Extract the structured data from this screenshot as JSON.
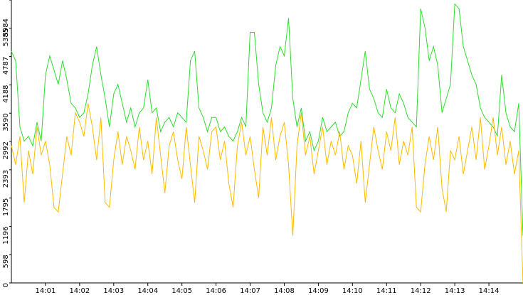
{
  "chart_data": {
    "type": "line",
    "x": [
      0,
      0.125,
      0.25,
      0.375,
      0.5,
      0.625,
      0.75,
      0.875,
      1,
      1.125,
      1.25,
      1.375,
      1.5,
      1.625,
      1.75,
      1.875,
      2,
      2.125,
      2.25,
      2.375,
      2.5,
      2.625,
      2.75,
      2.875,
      3,
      3.125,
      3.25,
      3.375,
      3.5,
      3.625,
      3.75,
      3.875,
      4,
      4.125,
      4.25,
      4.375,
      4.5,
      4.625,
      4.75,
      4.875,
      5,
      5.125,
      5.25,
      5.375,
      5.5,
      5.625,
      5.75,
      5.875,
      6,
      6.125,
      6.25,
      6.375,
      6.5,
      6.625,
      6.75,
      6.875,
      7,
      7.125,
      7.25,
      7.375,
      7.5,
      7.625,
      7.75,
      7.875,
      8,
      8.125,
      8.25,
      8.375,
      8.5,
      8.625,
      8.75,
      8.875,
      9,
      9.125,
      9.25,
      9.375,
      9.5,
      9.625,
      9.75,
      9.875,
      10,
      10.125,
      10.25,
      10.375,
      10.5,
      10.625,
      10.75,
      10.875,
      11,
      11.125,
      11.25,
      11.375,
      11.5,
      11.625,
      11.75,
      11.875,
      12,
      12.125,
      12.25,
      12.375,
      12.5,
      12.625,
      12.75,
      12.875,
      13,
      13.125,
      13.25,
      13.375,
      13.5,
      13.625,
      13.75,
      13.875,
      14,
      14.125,
      14.25,
      14.375,
      14.5,
      14.625,
      14.75,
      14.875,
      15
    ],
    "series": [
      {
        "color": "#2edc2e",
        "values": [
          4900,
          4700,
          3300,
          3000,
          3100,
          2900,
          3400,
          3000,
          4400,
          4800,
          4500,
          4200,
          4700,
          4300,
          3800,
          3700,
          3500,
          3600,
          4000,
          4600,
          5000,
          4400,
          3900,
          3300,
          4000,
          4200,
          3800,
          3400,
          3700,
          3300,
          3600,
          3700,
          4300,
          3600,
          3700,
          3200,
          3400,
          3500,
          3300,
          3600,
          3500,
          3400,
          4700,
          4900,
          3700,
          3500,
          3200,
          3500,
          3500,
          3200,
          3300,
          3100,
          3000,
          3200,
          3500,
          3300,
          5300,
          5300,
          4200,
          3600,
          3400,
          3700,
          4600,
          5000,
          4800,
          5600,
          3900,
          3300,
          3700,
          3000,
          3200,
          2800,
          3000,
          3500,
          3200,
          3300,
          3400,
          3100,
          3200,
          3600,
          3800,
          3700,
          4300,
          4900,
          4100,
          3900,
          3600,
          3500,
          4100,
          3700,
          3600,
          4000,
          3800,
          3500,
          3400,
          3300,
          5800,
          5400,
          4700,
          5000,
          4600,
          3600,
          3900,
          4200,
          5900,
          5800,
          5000,
          4700,
          4400,
          4200,
          3700,
          3500,
          3400,
          3300,
          3100,
          4400,
          3600,
          3300,
          3200,
          3800,
          1000
        ]
      },
      {
        "color": "#ffbb00",
        "values": [
          2900,
          2500,
          3100,
          1700,
          2800,
          2300,
          3300,
          2700,
          3000,
          2500,
          1600,
          1500,
          2300,
          3100,
          2700,
          3600,
          3400,
          3100,
          3800,
          3300,
          2600,
          3500,
          1700,
          1600,
          2600,
          3200,
          2500,
          3100,
          2800,
          2400,
          3300,
          2600,
          3000,
          2300,
          3500,
          2700,
          1900,
          2900,
          3200,
          2600,
          2200,
          3300,
          2500,
          1700,
          3100,
          2800,
          2400,
          3200,
          3300,
          2600,
          3000,
          2100,
          1600,
          2900,
          3400,
          2700,
          3100,
          2400,
          1800,
          3300,
          2700,
          3500,
          2600,
          3100,
          3400,
          2500,
          1000,
          2900,
          3600,
          2700,
          3100,
          2300,
          2800,
          3300,
          2500,
          3000,
          2700,
          3200,
          2400,
          2900,
          2700,
          2100,
          3000,
          1700,
          2500,
          3300,
          2800,
          2400,
          3200,
          2800,
          3500,
          2500,
          3000,
          2700,
          3300,
          1600,
          1500,
          2500,
          3100,
          2600,
          3300,
          2000,
          1500,
          2800,
          2600,
          3100,
          2300,
          2800,
          3300,
          2600,
          3500,
          2400,
          2900,
          3500,
          2700,
          3300,
          2500,
          3000,
          2300,
          2800,
          0
        ]
      }
    ],
    "xlim": [
      0,
      15
    ],
    "xticks": [
      {
        "value": 1,
        "label": "14:01"
      },
      {
        "value": 2,
        "label": "14:02"
      },
      {
        "value": 3,
        "label": "14:03"
      },
      {
        "value": 4,
        "label": "14:04"
      },
      {
        "value": 5,
        "label": "14:05"
      },
      {
        "value": 6,
        "label": "14:06"
      },
      {
        "value": 7,
        "label": "14:07"
      },
      {
        "value": 8,
        "label": "14:08"
      },
      {
        "value": 9,
        "label": "14:09"
      },
      {
        "value": 10,
        "label": "14:10"
      },
      {
        "value": 11,
        "label": "14:11"
      },
      {
        "value": 12,
        "label": "14:12"
      },
      {
        "value": 13,
        "label": "14:13"
      },
      {
        "value": 14,
        "label": "14:14"
      }
    ],
    "ylim": [
      0,
      5984
    ],
    "yticks": [
      0,
      598,
      1196,
      1795,
      2393,
      2992,
      3590,
      4188,
      4787,
      5385,
      5984
    ]
  }
}
